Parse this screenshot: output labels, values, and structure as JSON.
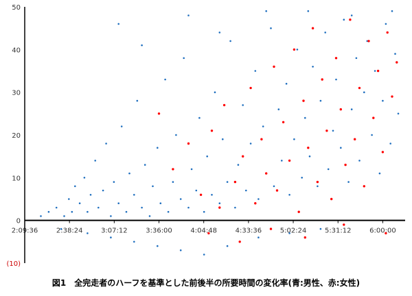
{
  "chart_data": {
    "type": "scatter",
    "title": "",
    "caption": "図1　全完走者のハーフを基準とした前後半の所要時間の変化率(青:男性、赤:女性)",
    "x_axis": {
      "min": "2:09:36",
      "max": "6:14:24",
      "tick_labels": [
        "2:09:36",
        "2:38:24",
        "3:07:12",
        "3:36:00",
        "4:04:48",
        "4:33:36",
        "5:02:24",
        "5:31:12",
        "6:00:00"
      ]
    },
    "y_axis": {
      "min": -10,
      "max": 50,
      "ticks": [
        {
          "value": 50,
          "label": "50"
        },
        {
          "value": 40,
          "label": "40"
        },
        {
          "value": 30,
          "label": "30"
        },
        {
          "value": 20,
          "label": "20"
        },
        {
          "value": 10,
          "label": "10"
        },
        {
          "value": 0,
          "label": "0"
        },
        {
          "value": -10,
          "label": "(10)"
        }
      ]
    },
    "grid": false,
    "legend": "none",
    "series": [
      {
        "color": "#1f6fbf",
        "points": [
          [
            "2:20:00",
            1
          ],
          [
            "2:25:00",
            2
          ],
          [
            "2:30:00",
            3
          ],
          [
            "2:35:00",
            1
          ],
          [
            "2:38:00",
            5
          ],
          [
            "2:40:00",
            2
          ],
          [
            "2:42:00",
            8
          ],
          [
            "2:45:00",
            4
          ],
          [
            "2:48:00",
            10
          ],
          [
            "2:50:00",
            2
          ],
          [
            "2:52:00",
            6
          ],
          [
            "2:55:00",
            14
          ],
          [
            "2:57:00",
            3
          ],
          [
            "3:00:00",
            7
          ],
          [
            "3:02:00",
            18
          ],
          [
            "3:05:00",
            1
          ],
          [
            "3:07:00",
            9
          ],
          [
            "3:10:00",
            4
          ],
          [
            "3:12:00",
            22
          ],
          [
            "3:15:00",
            2
          ],
          [
            "3:17:00",
            11
          ],
          [
            "3:20:00",
            6
          ],
          [
            "3:22:00",
            28
          ],
          [
            "3:25:00",
            3
          ],
          [
            "3:27:00",
            13
          ],
          [
            "3:30:00",
            1
          ],
          [
            "3:32:00",
            8
          ],
          [
            "3:35:00",
            17
          ],
          [
            "3:37:00",
            4
          ],
          [
            "3:40:00",
            33
          ],
          [
            "3:42:00",
            2
          ],
          [
            "3:45:00",
            9
          ],
          [
            "3:47:00",
            20
          ],
          [
            "3:50:00",
            5
          ],
          [
            "3:52:00",
            38
          ],
          [
            "3:55:00",
            3
          ],
          [
            "3:57:00",
            12
          ],
          [
            "4:00:00",
            7
          ],
          [
            "4:02:00",
            24
          ],
          [
            "4:05:00",
            2
          ],
          [
            "4:07:00",
            15
          ],
          [
            "4:10:00",
            6
          ],
          [
            "4:12:00",
            30
          ],
          [
            "4:15:00",
            4
          ],
          [
            "4:17:00",
            19
          ],
          [
            "4:20:00",
            9
          ],
          [
            "4:22:00",
            42
          ],
          [
            "4:25:00",
            3
          ],
          [
            "4:27:00",
            13
          ],
          [
            "4:30:00",
            27
          ],
          [
            "4:32:00",
            7
          ],
          [
            "4:35:00",
            18
          ],
          [
            "4:38:00",
            35
          ],
          [
            "4:40:00",
            5
          ],
          [
            "4:43:00",
            22
          ],
          [
            "4:45:00",
            11
          ],
          [
            "4:48:00",
            45
          ],
          [
            "4:50:00",
            8
          ],
          [
            "4:53:00",
            26
          ],
          [
            "4:55:00",
            14
          ],
          [
            "4:58:00",
            32
          ],
          [
            "5:00:00",
            6
          ],
          [
            "5:03:00",
            19
          ],
          [
            "5:05:00",
            40
          ],
          [
            "5:08:00",
            10
          ],
          [
            "5:10:00",
            24
          ],
          [
            "5:13:00",
            15
          ],
          [
            "5:15:00",
            36
          ],
          [
            "5:18:00",
            8
          ],
          [
            "5:20:00",
            28
          ],
          [
            "5:23:00",
            44
          ],
          [
            "5:25:00",
            12
          ],
          [
            "5:28:00",
            21
          ],
          [
            "5:30:00",
            33
          ],
          [
            "5:33:00",
            17
          ],
          [
            "5:35:00",
            47
          ],
          [
            "5:38:00",
            9
          ],
          [
            "5:40:00",
            26
          ],
          [
            "5:43:00",
            38
          ],
          [
            "5:45:00",
            14
          ],
          [
            "5:48:00",
            30
          ],
          [
            "5:50:00",
            42
          ],
          [
            "5:53:00",
            20
          ],
          [
            "5:55:00",
            35
          ],
          [
            "5:58:00",
            11
          ],
          [
            "6:00:00",
            28
          ],
          [
            "6:02:00",
            46
          ],
          [
            "6:05:00",
            18
          ],
          [
            "6:08:00",
            39
          ],
          [
            "6:10:00",
            25
          ],
          [
            "2:33:00",
            -2
          ],
          [
            "2:50:00",
            -3
          ],
          [
            "3:05:00",
            -4
          ],
          [
            "3:20:00",
            -5
          ],
          [
            "3:35:00",
            -6
          ],
          [
            "3:50:00",
            -7
          ],
          [
            "4:05:00",
            -8
          ],
          [
            "4:20:00",
            -6
          ],
          [
            "4:40:00",
            -4
          ],
          [
            "5:00:00",
            -3
          ],
          [
            "5:20:00",
            -2
          ],
          [
            "3:10:00",
            46
          ],
          [
            "3:25:00",
            41
          ],
          [
            "3:55:00",
            48
          ],
          [
            "4:15:00",
            44
          ],
          [
            "4:45:00",
            49
          ],
          [
            "5:12:00",
            49
          ],
          [
            "5:40:00",
            48
          ],
          [
            "6:06:00",
            49
          ]
        ]
      },
      {
        "color": "#ff0000",
        "points": [
          [
            "3:36:00",
            25
          ],
          [
            "3:45:00",
            12
          ],
          [
            "3:55:00",
            18
          ],
          [
            "4:03:00",
            6
          ],
          [
            "4:10:00",
            21
          ],
          [
            "4:15:00",
            3
          ],
          [
            "4:18:00",
            27
          ],
          [
            "4:25:00",
            9
          ],
          [
            "4:30:00",
            15
          ],
          [
            "4:35:00",
            31
          ],
          [
            "4:38:00",
            4
          ],
          [
            "4:42:00",
            19
          ],
          [
            "4:45:00",
            11
          ],
          [
            "4:50:00",
            36
          ],
          [
            "4:52:00",
            7
          ],
          [
            "4:56:00",
            23
          ],
          [
            "5:00:00",
            14
          ],
          [
            "5:03:00",
            40
          ],
          [
            "5:06:00",
            2
          ],
          [
            "5:09:00",
            28
          ],
          [
            "5:12:00",
            17
          ],
          [
            "5:15:00",
            45
          ],
          [
            "5:18:00",
            9
          ],
          [
            "5:21:00",
            33
          ],
          [
            "5:24:00",
            21
          ],
          [
            "5:27:00",
            5
          ],
          [
            "5:30:00",
            38
          ],
          [
            "5:33:00",
            26
          ],
          [
            "5:36:00",
            13
          ],
          [
            "5:39:00",
            47
          ],
          [
            "5:42:00",
            19
          ],
          [
            "5:45:00",
            31
          ],
          [
            "5:48:00",
            8
          ],
          [
            "5:51:00",
            42
          ],
          [
            "5:54:00",
            24
          ],
          [
            "5:57:00",
            35
          ],
          [
            "6:00:00",
            16
          ],
          [
            "6:03:00",
            44
          ],
          [
            "6:06:00",
            29
          ],
          [
            "6:09:00",
            37
          ],
          [
            "4:08:00",
            -3
          ],
          [
            "4:28:00",
            -5
          ],
          [
            "4:48:00",
            -2
          ],
          [
            "5:10:00",
            -4
          ],
          [
            "5:35:00",
            -1
          ],
          [
            "6:02:00",
            -3
          ]
        ]
      }
    ]
  }
}
